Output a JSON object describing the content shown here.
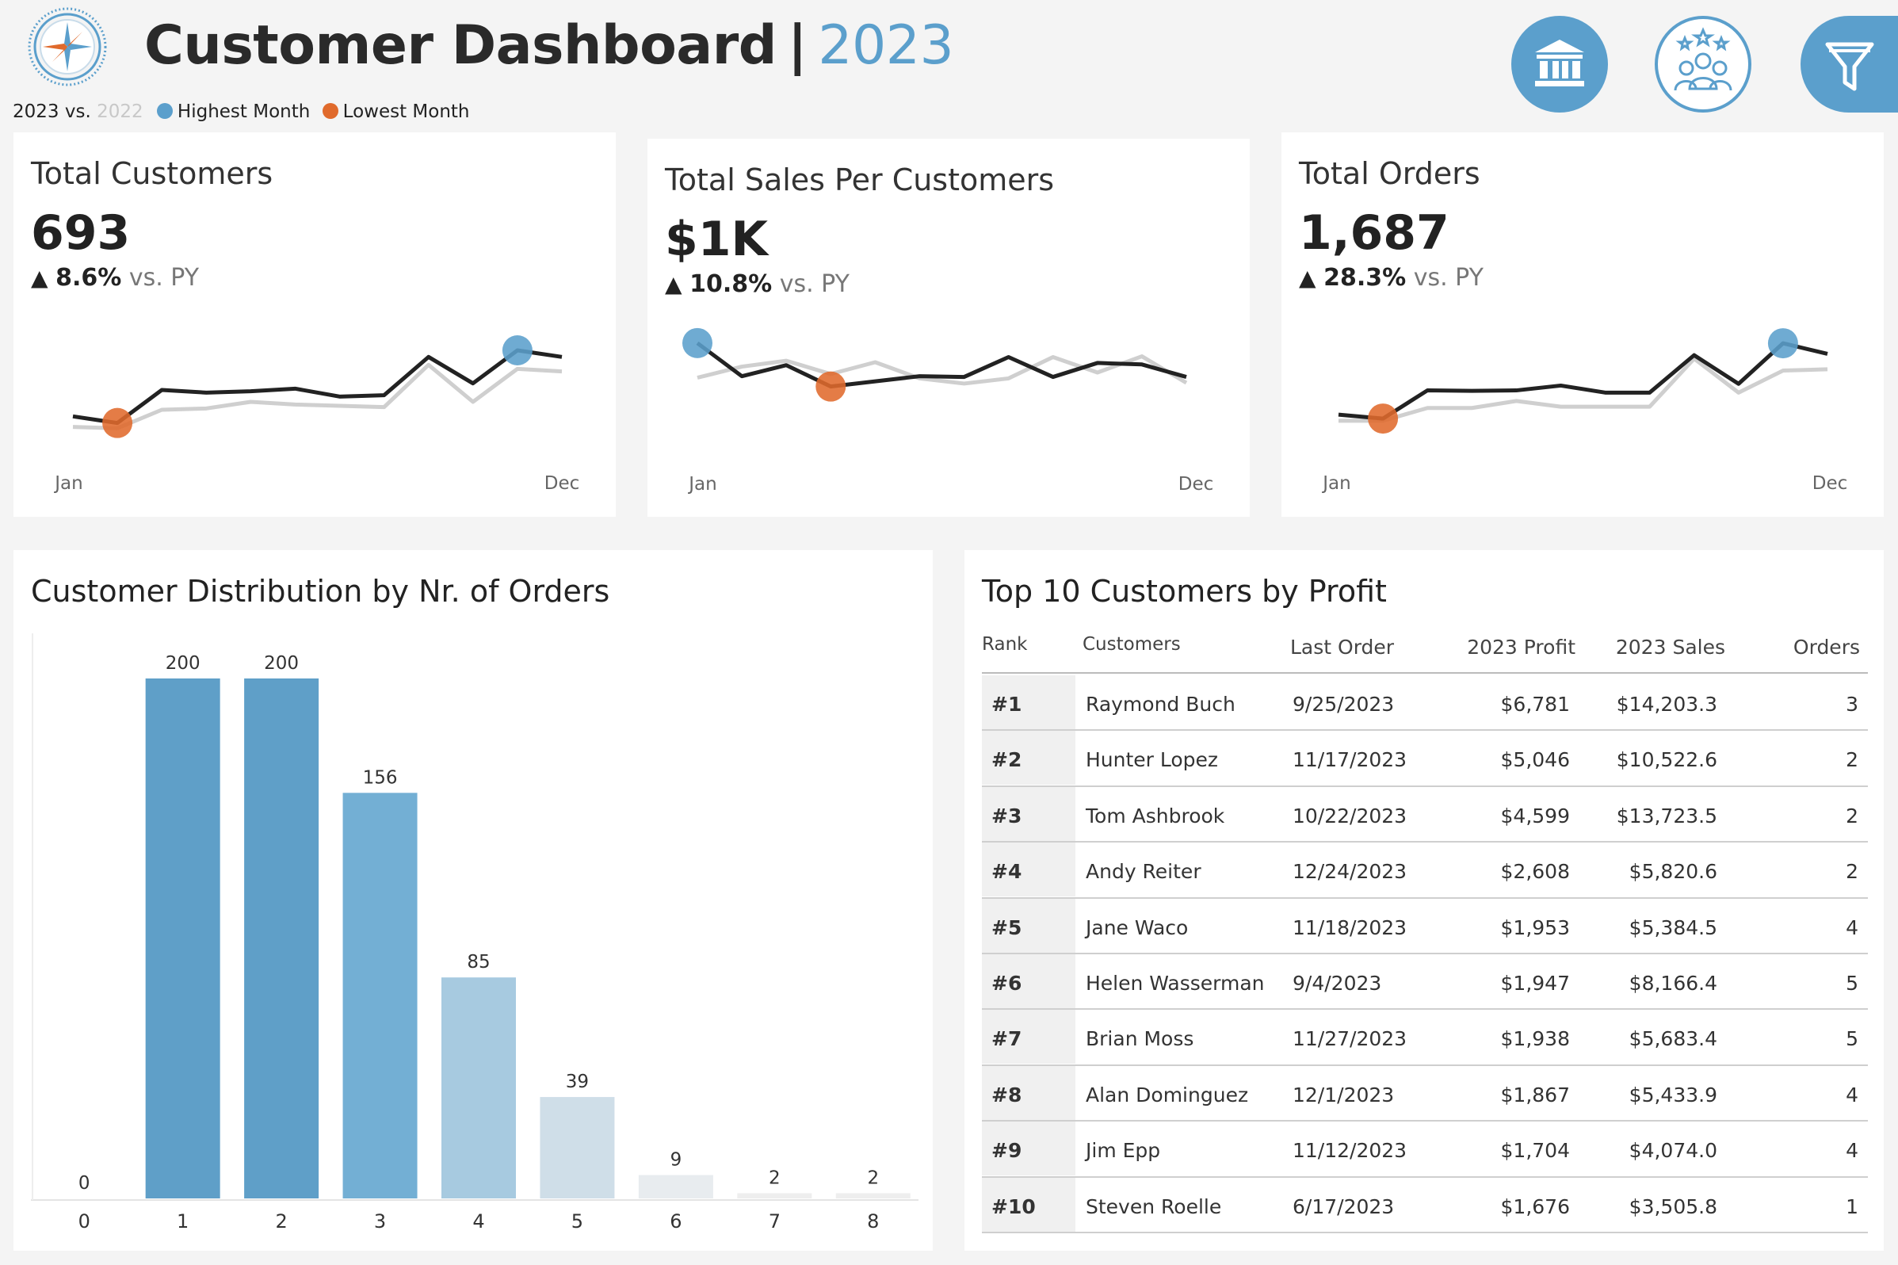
{
  "header": {
    "title": "Customer Dashboard",
    "separator": "|",
    "year": "2023",
    "legend": {
      "current": "2023 vs.",
      "previous": "2022",
      "highest_label": "Highest Month",
      "lowest_label": "Lowest Month"
    },
    "colors": {
      "accent": "#5b9fcc",
      "highest": "#5b9fcc",
      "lowest": "#e06a2c"
    },
    "buttons": [
      "bank-icon",
      "customers-group-icon",
      "filter-icon"
    ]
  },
  "kpis": [
    {
      "title": "Total Customers",
      "value": "693",
      "arrow": "▲",
      "change": "8.6%",
      "vs": "vs. PY",
      "start_label": "Jan",
      "end_label": "Dec",
      "current": [
        42,
        37,
        62,
        60,
        61,
        63,
        57,
        58,
        87,
        67,
        92,
        87
      ],
      "previous": [
        34,
        33,
        47,
        48,
        53,
        51,
        50,
        49,
        81,
        53,
        78,
        76
      ],
      "highest_month_index": 10,
      "lowest_month_index": 1,
      "y_range": [
        20,
        110
      ]
    },
    {
      "title": "Total Sales Per Customers",
      "value": "$1K",
      "arrow": "▲",
      "change": "10.8%",
      "vs": "vs. PY",
      "start_label": "Jan",
      "end_label": "Dec",
      "current": [
        1.3,
        0.85,
        1.0,
        0.71,
        0.78,
        0.85,
        0.84,
        1.11,
        0.84,
        1.03,
        1.01,
        0.84
      ],
      "previous": [
        0.83,
        0.98,
        1.06,
        0.88,
        1.04,
        0.82,
        0.75,
        0.82,
        1.11,
        0.9,
        1.12,
        0.76
      ],
      "highest_month_index": 0,
      "lowest_month_index": 3,
      "y_range": [
        0.2,
        1.6
      ]
    },
    {
      "title": "Total Orders",
      "value": "1,687",
      "arrow": "▲",
      "change": "28.3%",
      "vs": "vs. PY",
      "start_label": "Jan",
      "end_label": "Dec",
      "current": [
        100,
        91,
        155,
        154,
        155,
        166,
        150,
        150,
        235,
        170,
        262,
        238
      ],
      "previous": [
        86,
        86,
        115,
        115,
        131,
        118,
        118,
        118,
        227,
        150,
        200,
        203
      ],
      "highest_month_index": 10,
      "lowest_month_index": 1,
      "y_range": [
        30,
        300
      ]
    }
  ],
  "distribution": {
    "title": "Customer Distribution by Nr. of Orders"
  },
  "chart_data": {
    "type": "bar",
    "title": "Customer Distribution by Nr. of Orders",
    "xlabel": "",
    "ylabel": "",
    "categories": [
      "0",
      "1",
      "2",
      "3",
      "4",
      "5",
      "6",
      "7",
      "8"
    ],
    "values": [
      0,
      200,
      200,
      156,
      85,
      39,
      9,
      2,
      2
    ],
    "ylim": [
      0,
      200
    ],
    "colors": [
      "#5f9fc8",
      "#5f9fc8",
      "#5f9fc8",
      "#73afd4",
      "#a7cae0",
      "#cfdee8",
      "#e8ecef",
      "#eeeeee",
      "#eeeeee"
    ]
  },
  "top_customers": {
    "title": "Top 10 Customers by Profit",
    "columns": [
      "Rank",
      "Customers",
      "Last Order",
      "2023 Profit",
      "2023 Sales",
      "Orders"
    ],
    "rows": [
      {
        "rank": "#1",
        "name": "Raymond Buch",
        "last_order": "9/25/2023",
        "profit": "$6,781",
        "sales": "$14,203.3",
        "orders": "3"
      },
      {
        "rank": "#2",
        "name": "Hunter Lopez",
        "last_order": "11/17/2023",
        "profit": "$5,046",
        "sales": "$10,522.6",
        "orders": "2"
      },
      {
        "rank": "#3",
        "name": "Tom Ashbrook",
        "last_order": "10/22/2023",
        "profit": "$4,599",
        "sales": "$13,723.5",
        "orders": "2"
      },
      {
        "rank": "#4",
        "name": "Andy Reiter",
        "last_order": "12/24/2023",
        "profit": "$2,608",
        "sales": "$5,820.6",
        "orders": "2"
      },
      {
        "rank": "#5",
        "name": "Jane Waco",
        "last_order": "11/18/2023",
        "profit": "$1,953",
        "sales": "$5,384.5",
        "orders": "4"
      },
      {
        "rank": "#6",
        "name": "Helen Wasserman",
        "last_order": "9/4/2023",
        "profit": "$1,947",
        "sales": "$8,166.4",
        "orders": "5"
      },
      {
        "rank": "#7",
        "name": "Brian Moss",
        "last_order": "11/27/2023",
        "profit": "$1,938",
        "sales": "$5,683.4",
        "orders": "5"
      },
      {
        "rank": "#8",
        "name": "Alan Dominguez",
        "last_order": "12/1/2023",
        "profit": "$1,867",
        "sales": "$5,433.9",
        "orders": "4"
      },
      {
        "rank": "#9",
        "name": "Jim Epp",
        "last_order": "11/12/2023",
        "profit": "$1,704",
        "sales": "$4,074.0",
        "orders": "4"
      },
      {
        "rank": "#10",
        "name": "Steven Roelle",
        "last_order": "6/17/2023",
        "profit": "$1,676",
        "sales": "$3,505.8",
        "orders": "1"
      }
    ]
  }
}
